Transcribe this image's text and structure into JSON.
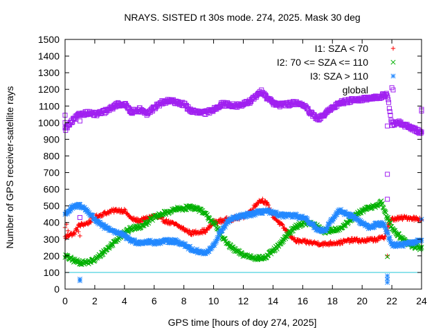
{
  "chart_data": {
    "type": "scatter",
    "title": "NRAYS. SISTED rt 30s mode. 274, 2025. Mask 30 deg",
    "xlabel": "GPS time [hours of doy 274, 2025]",
    "ylabel": "Number of GPS receiver-satellite rays",
    "xlim": [
      0,
      24
    ],
    "ylim": [
      0,
      1500
    ],
    "xticks": [
      0,
      2,
      4,
      6,
      8,
      10,
      12,
      14,
      16,
      18,
      20,
      22,
      24
    ],
    "yticks": [
      0,
      100,
      200,
      300,
      400,
      500,
      600,
      700,
      800,
      900,
      1000,
      1100,
      1200,
      1300,
      1400,
      1500
    ],
    "grid": false,
    "legend_position": "top-right",
    "reference_line": {
      "y": 100,
      "color": "#22c7d8"
    },
    "series": [
      {
        "name": "I1: SZA < 70",
        "marker": "+",
        "color": "#ff0000",
        "points": [
          [
            0,
            310
          ],
          [
            0.3,
            330
          ],
          [
            0.6,
            330
          ],
          [
            0.9,
            380
          ],
          [
            1.2,
            390
          ],
          [
            1.5,
            395
          ],
          [
            2,
            430
          ],
          [
            2.5,
            450
          ],
          [
            3,
            465
          ],
          [
            3.5,
            475
          ],
          [
            4,
            470
          ],
          [
            4.5,
            420
          ],
          [
            5,
            410
          ],
          [
            5.5,
            425
          ],
          [
            6,
            440
          ],
          [
            6.5,
            420
          ],
          [
            7,
            400
          ],
          [
            7.5,
            385
          ],
          [
            8,
            360
          ],
          [
            8.5,
            335
          ],
          [
            9,
            345
          ],
          [
            9.5,
            350
          ],
          [
            10,
            400
          ],
          [
            10.5,
            410
          ],
          [
            11,
            420
          ],
          [
            11.5,
            425
          ],
          [
            12,
            435
          ],
          [
            12.5,
            470
          ],
          [
            13,
            525
          ],
          [
            13.3,
            535
          ],
          [
            13.6,
            510
          ],
          [
            14,
            440
          ],
          [
            14.5,
            390
          ],
          [
            15,
            340
          ],
          [
            15.5,
            290
          ],
          [
            16,
            285
          ],
          [
            16.5,
            280
          ],
          [
            17,
            275
          ],
          [
            17.5,
            270
          ],
          [
            18,
            278
          ],
          [
            18.5,
            280
          ],
          [
            19,
            290
          ],
          [
            19.5,
            295
          ],
          [
            20,
            290
          ],
          [
            20.5,
            295
          ],
          [
            21,
            300
          ],
          [
            21.5,
            310
          ],
          [
            21.7,
            370
          ],
          [
            22,
            420
          ],
          [
            22.5,
            425
          ],
          [
            23,
            430
          ],
          [
            23.5,
            425
          ],
          [
            24,
            420
          ]
        ],
        "outliers": [
          [
            0,
            370
          ],
          [
            0.1,
            390
          ],
          [
            0.2,
            350
          ],
          [
            0.9,
            345
          ],
          [
            1,
            320
          ],
          [
            21.7,
            200
          ]
        ]
      },
      {
        "name": "I2: 70 <= SZA <= 110",
        "marker": "x",
        "color": "#00b000",
        "points": [
          [
            0,
            200
          ],
          [
            0.5,
            175
          ],
          [
            1,
            160
          ],
          [
            1.5,
            160
          ],
          [
            2,
            175
          ],
          [
            2.5,
            215
          ],
          [
            3,
            255
          ],
          [
            3.5,
            300
          ],
          [
            4,
            340
          ],
          [
            4.5,
            365
          ],
          [
            5,
            375
          ],
          [
            5.5,
            400
          ],
          [
            6,
            430
          ],
          [
            6.5,
            450
          ],
          [
            7,
            465
          ],
          [
            7.5,
            480
          ],
          [
            8,
            485
          ],
          [
            8.5,
            495
          ],
          [
            9,
            480
          ],
          [
            9.5,
            445
          ],
          [
            10,
            400
          ],
          [
            10.5,
            325
          ],
          [
            11,
            265
          ],
          [
            11.5,
            230
          ],
          [
            12,
            205
          ],
          [
            12.5,
            195
          ],
          [
            13,
            185
          ],
          [
            13.5,
            190
          ],
          [
            14,
            230
          ],
          [
            14.5,
            270
          ],
          [
            15,
            330
          ],
          [
            15.5,
            375
          ],
          [
            16,
            395
          ],
          [
            16.5,
            395
          ],
          [
            17,
            375
          ],
          [
            17.5,
            345
          ],
          [
            18,
            355
          ],
          [
            18.5,
            365
          ],
          [
            19,
            395
          ],
          [
            19.5,
            440
          ],
          [
            20,
            470
          ],
          [
            20.5,
            490
          ],
          [
            21,
            505
          ],
          [
            21.3,
            520
          ],
          [
            21.6,
            450
          ],
          [
            22,
            370
          ],
          [
            22.5,
            320
          ],
          [
            23,
            280
          ],
          [
            23.5,
            255
          ],
          [
            24,
            245
          ]
        ],
        "outliers": [
          [
            21.7,
            195
          ]
        ]
      },
      {
        "name": "I3: SZA > 110",
        "marker": "*",
        "color": "#2288ff",
        "points": [
          [
            0,
            450
          ],
          [
            0.5,
            490
          ],
          [
            1,
            505
          ],
          [
            1.5,
            470
          ],
          [
            2,
            420
          ],
          [
            2.5,
            380
          ],
          [
            3,
            360
          ],
          [
            3.5,
            340
          ],
          [
            4,
            320
          ],
          [
            4.5,
            290
          ],
          [
            5,
            280
          ],
          [
            5.5,
            285
          ],
          [
            6,
            280
          ],
          [
            6.5,
            285
          ],
          [
            7,
            290
          ],
          [
            7.5,
            285
          ],
          [
            8,
            270
          ],
          [
            8.5,
            240
          ],
          [
            9,
            225
          ],
          [
            9.5,
            215
          ],
          [
            10,
            260
          ],
          [
            10.5,
            350
          ],
          [
            11,
            410
          ],
          [
            11.5,
            430
          ],
          [
            12,
            440
          ],
          [
            12.5,
            450
          ],
          [
            13,
            460
          ],
          [
            13.5,
            470
          ],
          [
            14,
            455
          ],
          [
            14.5,
            445
          ],
          [
            15,
            440
          ],
          [
            15.5,
            440
          ],
          [
            16,
            430
          ],
          [
            16.5,
            400
          ],
          [
            17,
            360
          ],
          [
            17.5,
            350
          ],
          [
            18,
            420
          ],
          [
            18.5,
            475
          ],
          [
            19,
            450
          ],
          [
            19.5,
            430
          ],
          [
            20,
            395
          ],
          [
            20.5,
            370
          ],
          [
            21,
            390
          ],
          [
            21.5,
            390
          ],
          [
            22,
            265
          ],
          [
            22.5,
            265
          ],
          [
            23,
            270
          ],
          [
            23.5,
            280
          ],
          [
            24,
            300
          ]
        ],
        "outliers": [
          [
            1,
            60
          ],
          [
            1,
            50
          ],
          [
            21.7,
            80
          ],
          [
            21.7,
            60
          ],
          [
            21.7,
            40
          ],
          [
            24,
            420
          ]
        ]
      },
      {
        "name": "global",
        "marker": "square",
        "color": "#a020f0",
        "points": [
          [
            0,
            960
          ],
          [
            0.3,
            990
          ],
          [
            0.6,
            1020
          ],
          [
            1,
            1050
          ],
          [
            1.5,
            1060
          ],
          [
            2,
            1050
          ],
          [
            2.5,
            1060
          ],
          [
            3,
            1080
          ],
          [
            3.5,
            1110
          ],
          [
            4,
            1110
          ],
          [
            4.5,
            1065
          ],
          [
            5,
            1080
          ],
          [
            5.5,
            1050
          ],
          [
            6,
            1090
          ],
          [
            6.5,
            1120
          ],
          [
            7,
            1130
          ],
          [
            7.5,
            1125
          ],
          [
            8,
            1110
          ],
          [
            8.5,
            1070
          ],
          [
            9,
            1060
          ],
          [
            9.5,
            1060
          ],
          [
            10,
            1080
          ],
          [
            10.5,
            1110
          ],
          [
            11,
            1110
          ],
          [
            11.5,
            1100
          ],
          [
            12,
            1110
          ],
          [
            12.5,
            1130
          ],
          [
            13,
            1170
          ],
          [
            13.3,
            1190
          ],
          [
            13.6,
            1150
          ],
          [
            14,
            1120
          ],
          [
            14.5,
            1105
          ],
          [
            15,
            1110
          ],
          [
            15.5,
            1120
          ],
          [
            16,
            1110
          ],
          [
            16.5,
            1060
          ],
          [
            17,
            1020
          ],
          [
            17.5,
            1050
          ],
          [
            18,
            1090
          ],
          [
            18.5,
            1120
          ],
          [
            19,
            1130
          ],
          [
            19.5,
            1140
          ],
          [
            20,
            1140
          ],
          [
            20.5,
            1145
          ],
          [
            21,
            1150
          ],
          [
            21.5,
            1165
          ],
          [
            21.7,
            1170
          ],
          [
            22,
            990
          ],
          [
            22.5,
            1000
          ],
          [
            23,
            980
          ],
          [
            23.5,
            960
          ],
          [
            24,
            940
          ]
        ],
        "outliers": [
          [
            0,
            1045
          ],
          [
            0,
            1000
          ],
          [
            1,
            1010
          ],
          [
            1,
            430
          ],
          [
            21.7,
            690
          ],
          [
            21.7,
            540
          ],
          [
            21.7,
            980
          ],
          [
            22,
            1210
          ],
          [
            24,
            1080
          ],
          [
            24,
            1070
          ]
        ]
      }
    ]
  }
}
